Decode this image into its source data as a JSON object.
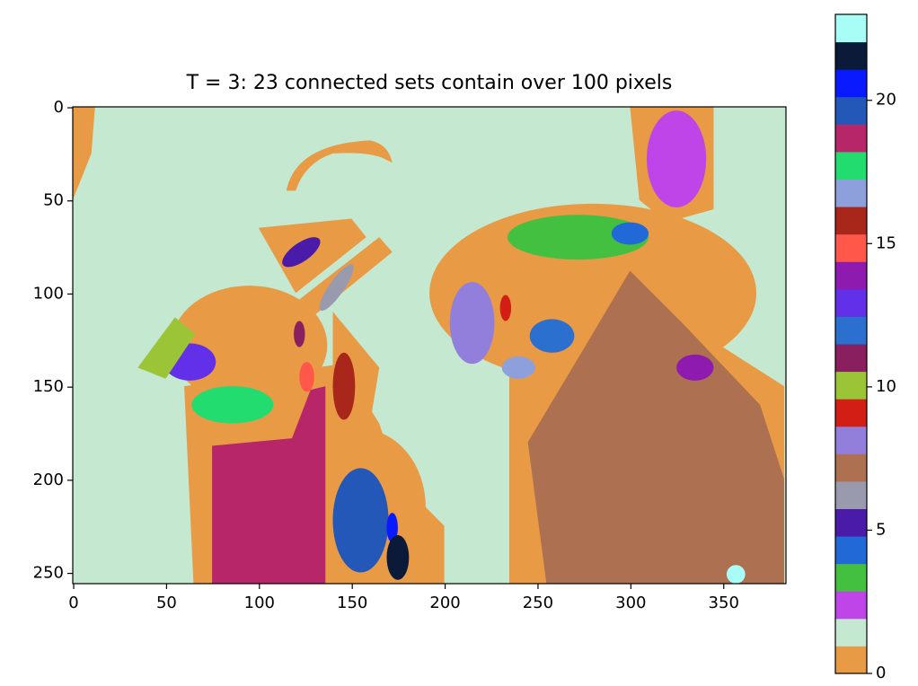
{
  "chart_data": {
    "type": "image",
    "title": "T = 3: 23 connected sets contain over 100 pixels",
    "xlim": [
      -0.5,
      383.5
    ],
    "ylim": [
      255.5,
      -0.5
    ],
    "xticks": [
      0,
      50,
      100,
      150,
      200,
      250,
      300,
      350
    ],
    "yticks": [
      0,
      50,
      100,
      150,
      200,
      250
    ],
    "colorbar": {
      "clim": [
        0,
        23
      ],
      "ticks": [
        0,
        5,
        10,
        15,
        20
      ],
      "colors": [
        "#e99a45",
        "#c5e8d0",
        "#bf45e8",
        "#43c040",
        "#2069d6",
        "#4a1aa8",
        "#9a9aaf",
        "#ad7050",
        "#917fdb",
        "#d21e14",
        "#9bc437",
        "#8a1f5f",
        "#2b6fcf",
        "#6230e8",
        "#8e1ab0",
        "#ff574a",
        "#a8261a",
        "#8ea0db",
        "#22dc6f",
        "#b8266a",
        "#2358b8",
        "#0a1aff",
        "#0b1a38",
        "#a8fef6"
      ]
    }
  }
}
